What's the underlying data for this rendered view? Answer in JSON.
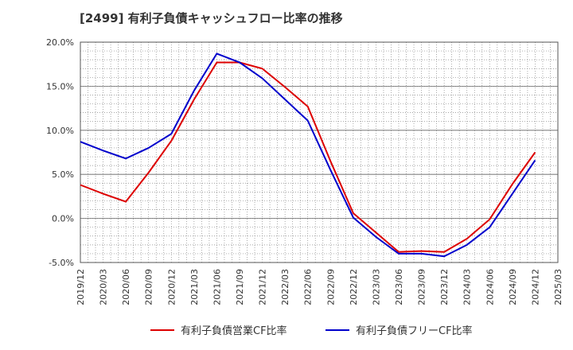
{
  "chart_data": {
    "type": "line",
    "title": "[2499]  有利子負債キャッシュフロー比率の推移",
    "x": [
      "2019/12",
      "2020/03",
      "2020/06",
      "2020/09",
      "2020/12",
      "2021/03",
      "2021/06",
      "2021/09",
      "2021/12",
      "2022/03",
      "2022/06",
      "2022/09",
      "2022/12",
      "2023/03",
      "2023/06",
      "2023/09",
      "2023/12",
      "2024/03",
      "2024/06",
      "2024/09",
      "2024/12",
      "2025/03"
    ],
    "xlabel": "",
    "ylabel": "",
    "ylim": [
      -5,
      20
    ],
    "yticks": [
      -5,
      0,
      5,
      10,
      15,
      20
    ],
    "ytick_labels": [
      "-5.0%",
      "0.0%",
      "5.0%",
      "10.0%",
      "15.0%",
      "20.0%"
    ],
    "grid": true,
    "legend_position": "bottom",
    "series": [
      {
        "name": "有利子負債営業CF比率",
        "color": "#dd0000",
        "values": [
          3.8,
          2.8,
          1.9,
          5.2,
          8.8,
          13.5,
          17.7,
          17.7,
          17.0,
          14.9,
          12.7,
          6.5,
          0.6,
          -1.6,
          -3.8,
          -3.7,
          -3.8,
          -2.3,
          -0.1,
          3.9,
          7.5,
          null
        ]
      },
      {
        "name": "有利子負債フリーCF比率",
        "color": "#0000cc",
        "values": [
          8.7,
          7.7,
          6.8,
          8.0,
          9.6,
          14.5,
          18.7,
          17.7,
          15.9,
          13.5,
          11.1,
          5.5,
          0.1,
          -2.1,
          -4.0,
          -4.0,
          -4.3,
          -3.0,
          -1.0,
          2.8,
          6.6,
          null
        ]
      }
    ]
  }
}
